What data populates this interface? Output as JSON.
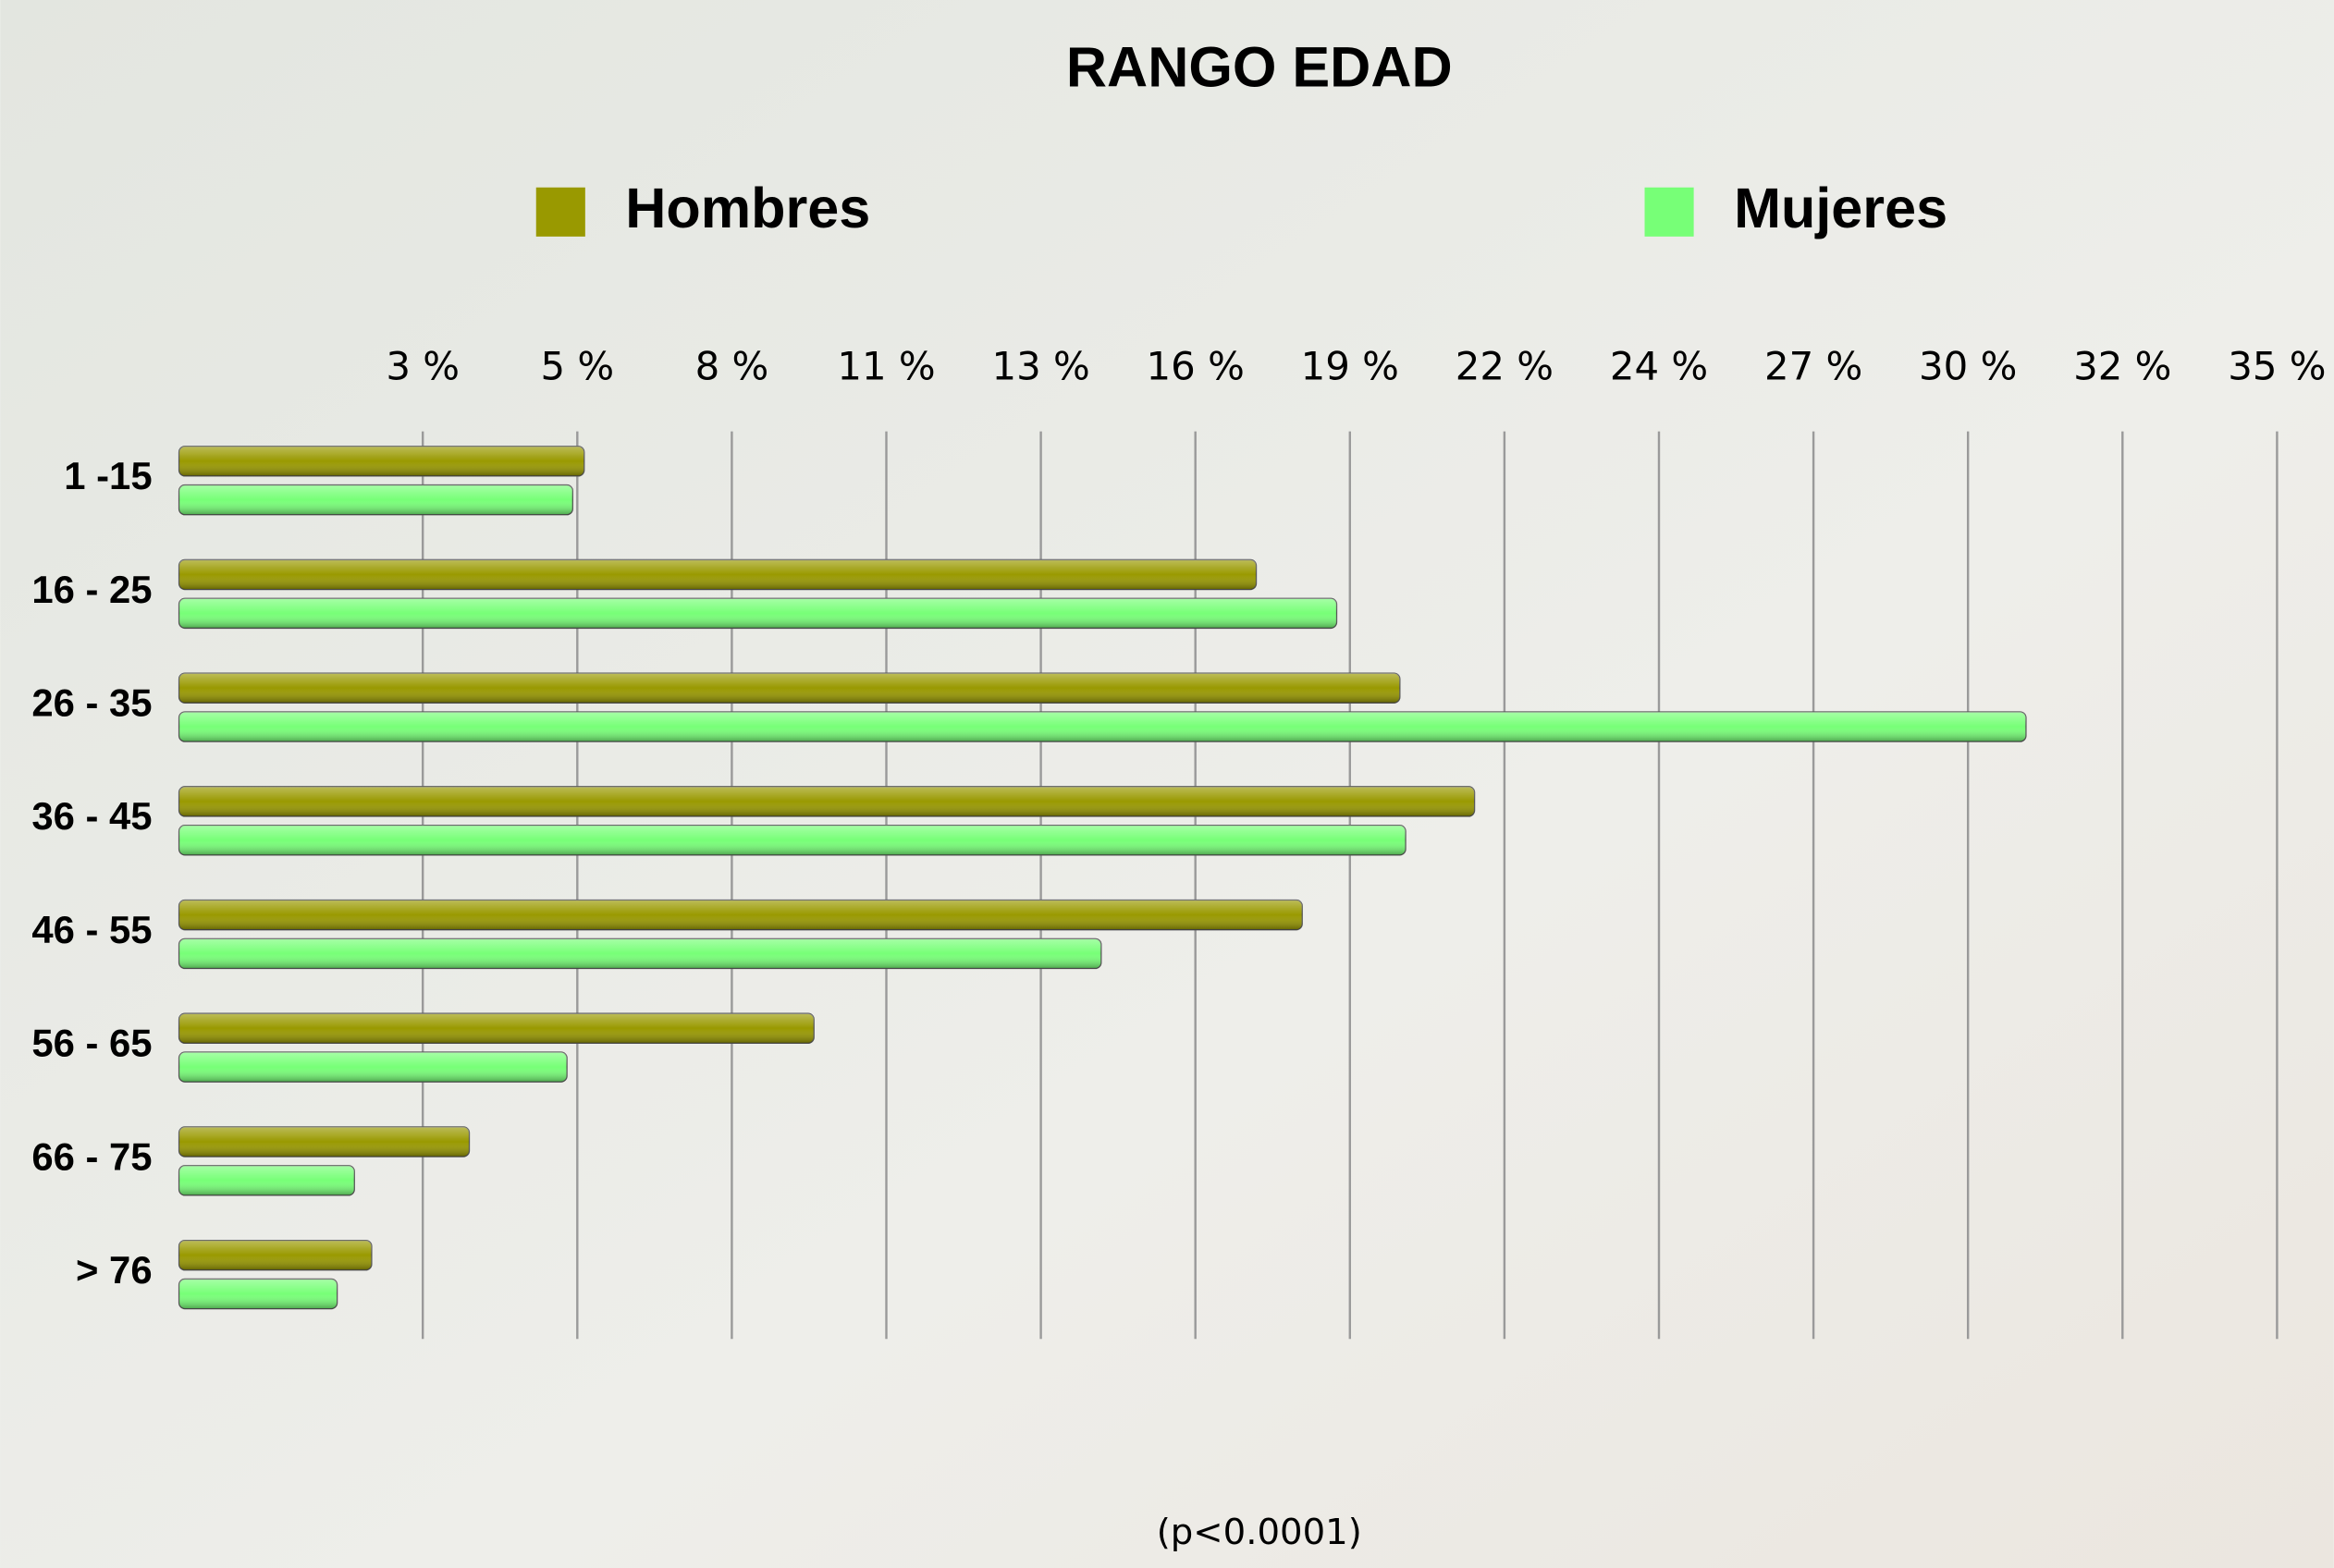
{
  "chart_data": {
    "type": "barh",
    "title": "RANGO EDAD",
    "categories": [
      "1 -15",
      "16 - 25",
      "26 - 35",
      "36 - 45",
      "46 - 55",
      "56 - 65",
      "66 - 75",
      "> 76"
    ],
    "series": [
      {
        "name": "Hombres",
        "color": "#999900",
        "values": [
          5.5,
          17.2,
          19.7,
          21.0,
          18.0,
          9.5,
          3.5,
          1.8
        ]
      },
      {
        "name": "Mujeres",
        "color": "#77ff77",
        "values": [
          5.3,
          18.6,
          30.6,
          19.8,
          14.5,
          5.2,
          1.5,
          1.2
        ]
      }
    ],
    "xlim": [
      0,
      34.97
    ],
    "xticks": [
      {
        "value": 2.69,
        "label": "3 %"
      },
      {
        "value": 5.38,
        "label": "5 %"
      },
      {
        "value": 8.07,
        "label": "8 %"
      },
      {
        "value": 10.76,
        "label": "11 %"
      },
      {
        "value": 13.45,
        "label": "13 %"
      },
      {
        "value": 16.14,
        "label": "16 %"
      },
      {
        "value": 18.83,
        "label": "19 %"
      },
      {
        "value": 21.52,
        "label": "22 %"
      },
      {
        "value": 24.21,
        "label": "24 %"
      },
      {
        "value": 26.9,
        "label": "27 %"
      },
      {
        "value": 29.59,
        "label": "30 %"
      },
      {
        "value": 32.28,
        "label": "32 %"
      },
      {
        "value": 34.97,
        "label": "35 %"
      }
    ],
    "grid": true,
    "annotation": "(p<0.0001)"
  }
}
